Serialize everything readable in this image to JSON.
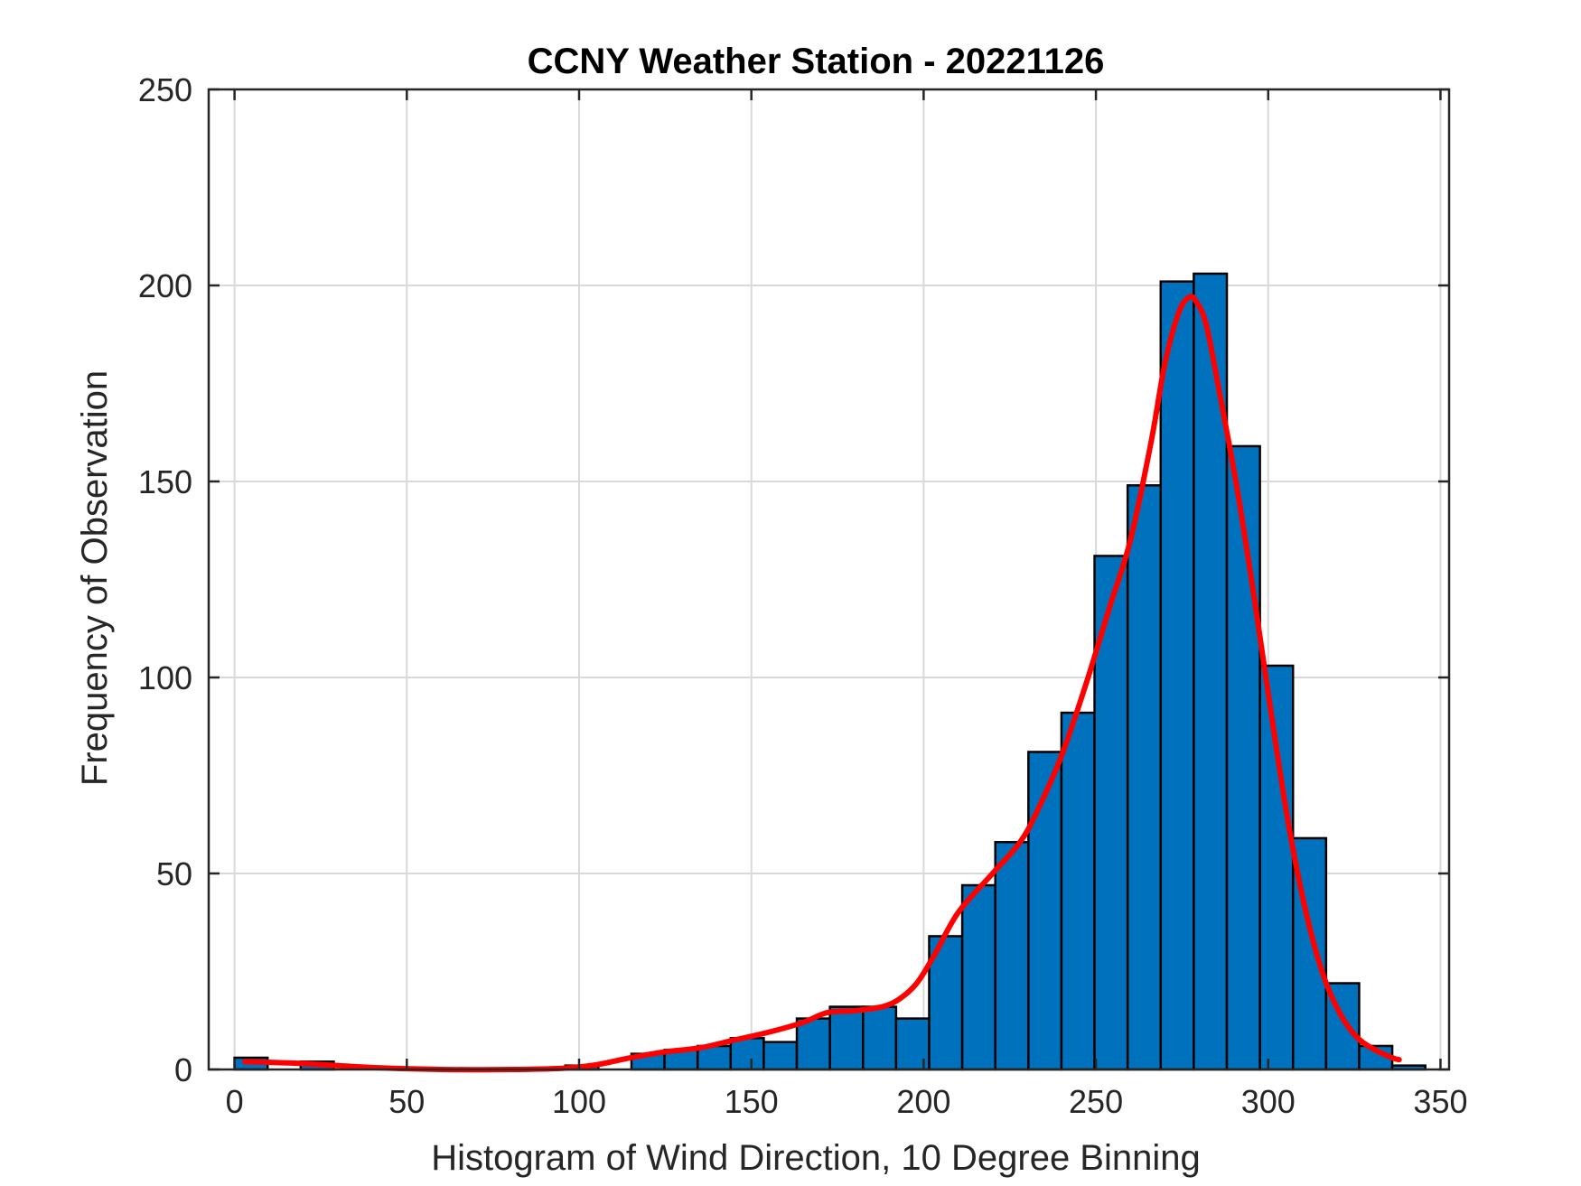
{
  "chart_data": {
    "type": "bar",
    "title": "CCNY Weather Station - 20221126",
    "xlabel": "Histogram of Wind Direction, 10 Degree Binning",
    "ylabel": "Frequency of Observation",
    "xlim": [
      -7.5,
      352.5
    ],
    "ylim": [
      0,
      250
    ],
    "xticks": [
      0,
      50,
      100,
      150,
      200,
      250,
      300,
      350
    ],
    "yticks": [
      0,
      50,
      100,
      150,
      200,
      250
    ],
    "grid": true,
    "bin_width": 9.6,
    "bins": [
      {
        "left": 0,
        "value": 3
      },
      {
        "left": 19.2,
        "value": 2
      },
      {
        "left": 38.4,
        "value": 0
      },
      {
        "left": 57.6,
        "value": 0
      },
      {
        "left": 76.8,
        "value": 0
      },
      {
        "left": 96,
        "value": 1
      },
      {
        "left": 115.2,
        "value": 4
      },
      {
        "left": 124.8,
        "value": 5
      },
      {
        "left": 134.4,
        "value": 6
      },
      {
        "left": 144,
        "value": 8
      },
      {
        "left": 153.6,
        "value": 7
      },
      {
        "left": 163.2,
        "value": 13
      },
      {
        "left": 172.8,
        "value": 16
      },
      {
        "left": 182.4,
        "value": 16
      },
      {
        "left": 192,
        "value": 13
      },
      {
        "left": 201.6,
        "value": 34
      },
      {
        "left": 211.2,
        "value": 47
      },
      {
        "left": 220.8,
        "value": 58
      },
      {
        "left": 230.4,
        "value": 81
      },
      {
        "left": 240,
        "value": 91
      },
      {
        "left": 249.6,
        "value": 131
      },
      {
        "left": 259.2,
        "value": 149
      },
      {
        "left": 268.8,
        "value": 201
      },
      {
        "left": 278.4,
        "value": 203
      },
      {
        "left": 288,
        "value": 159
      },
      {
        "left": 297.6,
        "value": 103
      },
      {
        "left": 307.2,
        "value": 59
      },
      {
        "left": 316.8,
        "value": 22
      },
      {
        "left": 326.4,
        "value": 6
      },
      {
        "left": 336,
        "value": 1
      }
    ],
    "fit_line": {
      "color": "#ff0000",
      "x": [
        3,
        20,
        40,
        60,
        80,
        95,
        105,
        115,
        125,
        135,
        145,
        155,
        165,
        172,
        180,
        188,
        193,
        198,
        203,
        210,
        220,
        228,
        233,
        240,
        247,
        254,
        260,
        266,
        270,
        274,
        277,
        279,
        282,
        286,
        291,
        296,
        301,
        306,
        311,
        316,
        321,
        326,
        331,
        336,
        338
      ],
      "y": [
        2,
        1.5,
        0.5,
        0,
        0,
        0.3,
        1.2,
        3,
        4.5,
        5.5,
        7.5,
        9.5,
        12,
        14.5,
        15,
        16,
        18,
        22,
        29,
        40,
        50,
        58,
        66,
        80,
        98,
        118,
        135,
        160,
        180,
        193,
        197,
        196,
        190,
        172,
        148,
        120,
        90,
        62,
        40,
        24,
        14,
        8,
        5,
        3,
        2.5
      ]
    }
  }
}
